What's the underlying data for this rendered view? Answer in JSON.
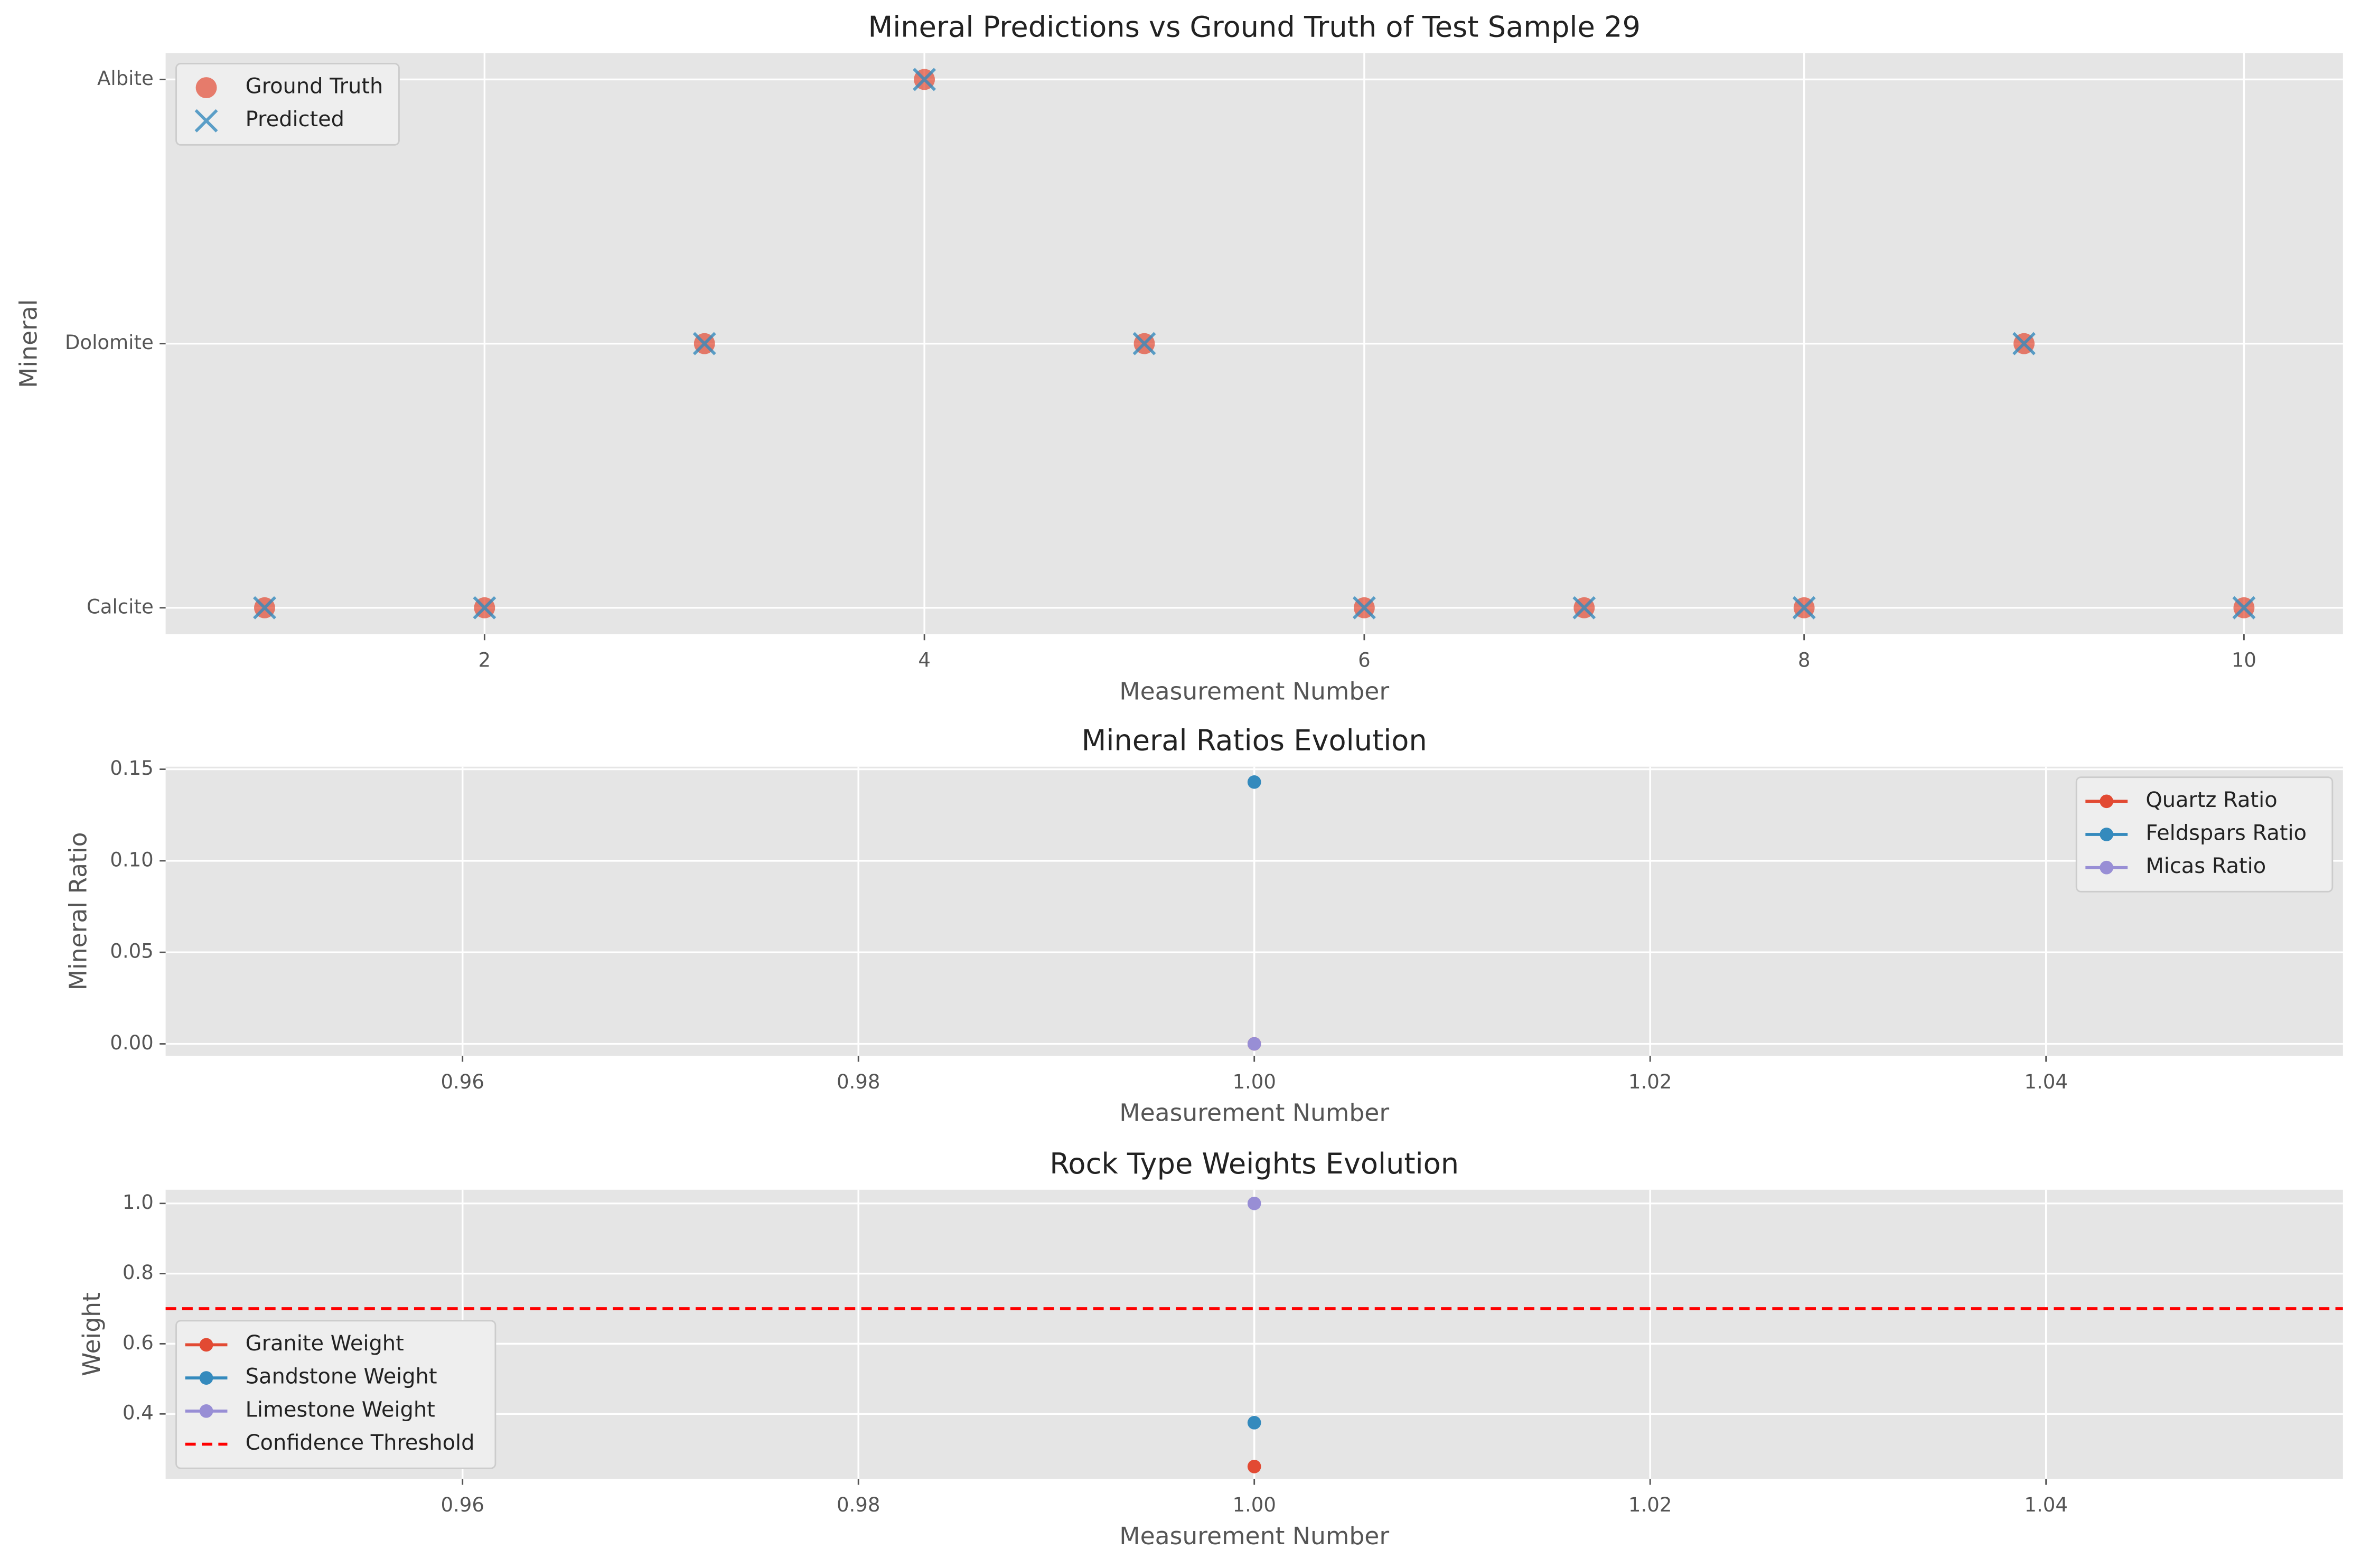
{
  "chart_data": [
    {
      "type": "scatter",
      "title": "Mineral Predictions vs Ground Truth of Test Sample 29",
      "x_label": "Measurement Number",
      "y_label": "Mineral",
      "x": [
        1,
        2,
        3,
        4,
        5,
        6,
        7,
        8,
        9,
        10
      ],
      "series": [
        {
          "name": "Ground Truth",
          "color": "#E24A33",
          "marker": "o",
          "values": [
            0,
            0,
            1,
            2,
            1,
            0,
            0,
            0,
            1,
            0
          ]
        },
        {
          "name": "Predicted",
          "color": "#348ABD",
          "marker": "x",
          "values": [
            0,
            0,
            1,
            2,
            1,
            0,
            0,
            0,
            1,
            0
          ]
        }
      ],
      "xlim": [
        0.55,
        10.45
      ],
      "xticks": [
        2,
        4,
        6,
        8,
        10
      ],
      "ylim": [
        -0.1,
        2.1
      ],
      "yticks": [
        {
          "value": 0,
          "label": "Calcite"
        },
        {
          "value": 1,
          "label": "Dolomite"
        },
        {
          "value": 2,
          "label": "Albite"
        }
      ],
      "grid": true,
      "legend": "upper left"
    },
    {
      "type": "line",
      "title": "Mineral Ratios Evolution",
      "x_label": "Measurement Number",
      "y_label": "Mineral Ratio",
      "x": [
        1
      ],
      "series": [
        {
          "name": "Quartz Ratio",
          "color": "#E24A33",
          "values": [
            0
          ]
        },
        {
          "name": "Feldspars Ratio",
          "color": "#348ABD",
          "values": [
            0.143
          ]
        },
        {
          "name": "Micas Ratio",
          "color": "#988ED5",
          "values": [
            0
          ]
        }
      ],
      "xlim": [
        0.945,
        1.055
      ],
      "xticks": [
        0.96,
        0.98,
        {
          "value": 1,
          "label": "1.00"
        },
        1.02,
        1.04
      ],
      "ylim": [
        -0.0065,
        0.1514
      ],
      "yticks": [
        {
          "value": 0,
          "label": "0.00"
        },
        0.05,
        {
          "value": 0.1,
          "label": "0.10"
        },
        0.15
      ],
      "grid": true,
      "legend": "upper right"
    },
    {
      "type": "line",
      "title": "Rock Type Weights Evolution",
      "x_label": "Measurement Number",
      "y_label": "Weight",
      "x": [
        1
      ],
      "series": [
        {
          "name": "Granite Weight",
          "color": "#E24A33",
          "values": [
            0.25
          ]
        },
        {
          "name": "Sandstone Weight",
          "color": "#348ABD",
          "values": [
            0.375
          ]
        },
        {
          "name": "Limestone Weight",
          "color": "#988ED5",
          "values": [
            1.0
          ]
        }
      ],
      "hlines": [
        {
          "name": "Confidence Threshold",
          "y": 0.7,
          "color": "#ff0000",
          "style": "dashed"
        }
      ],
      "xlim": [
        0.945,
        1.055
      ],
      "xticks": [
        0.96,
        0.98,
        {
          "value": 1,
          "label": "1.00"
        },
        1.02,
        1.04
      ],
      "ylim": [
        0.215,
        1.039
      ],
      "yticks": [
        0.4,
        0.6,
        0.8,
        {
          "value": 1,
          "label": "1.0"
        }
      ],
      "grid": true,
      "legend": "lower left"
    }
  ]
}
